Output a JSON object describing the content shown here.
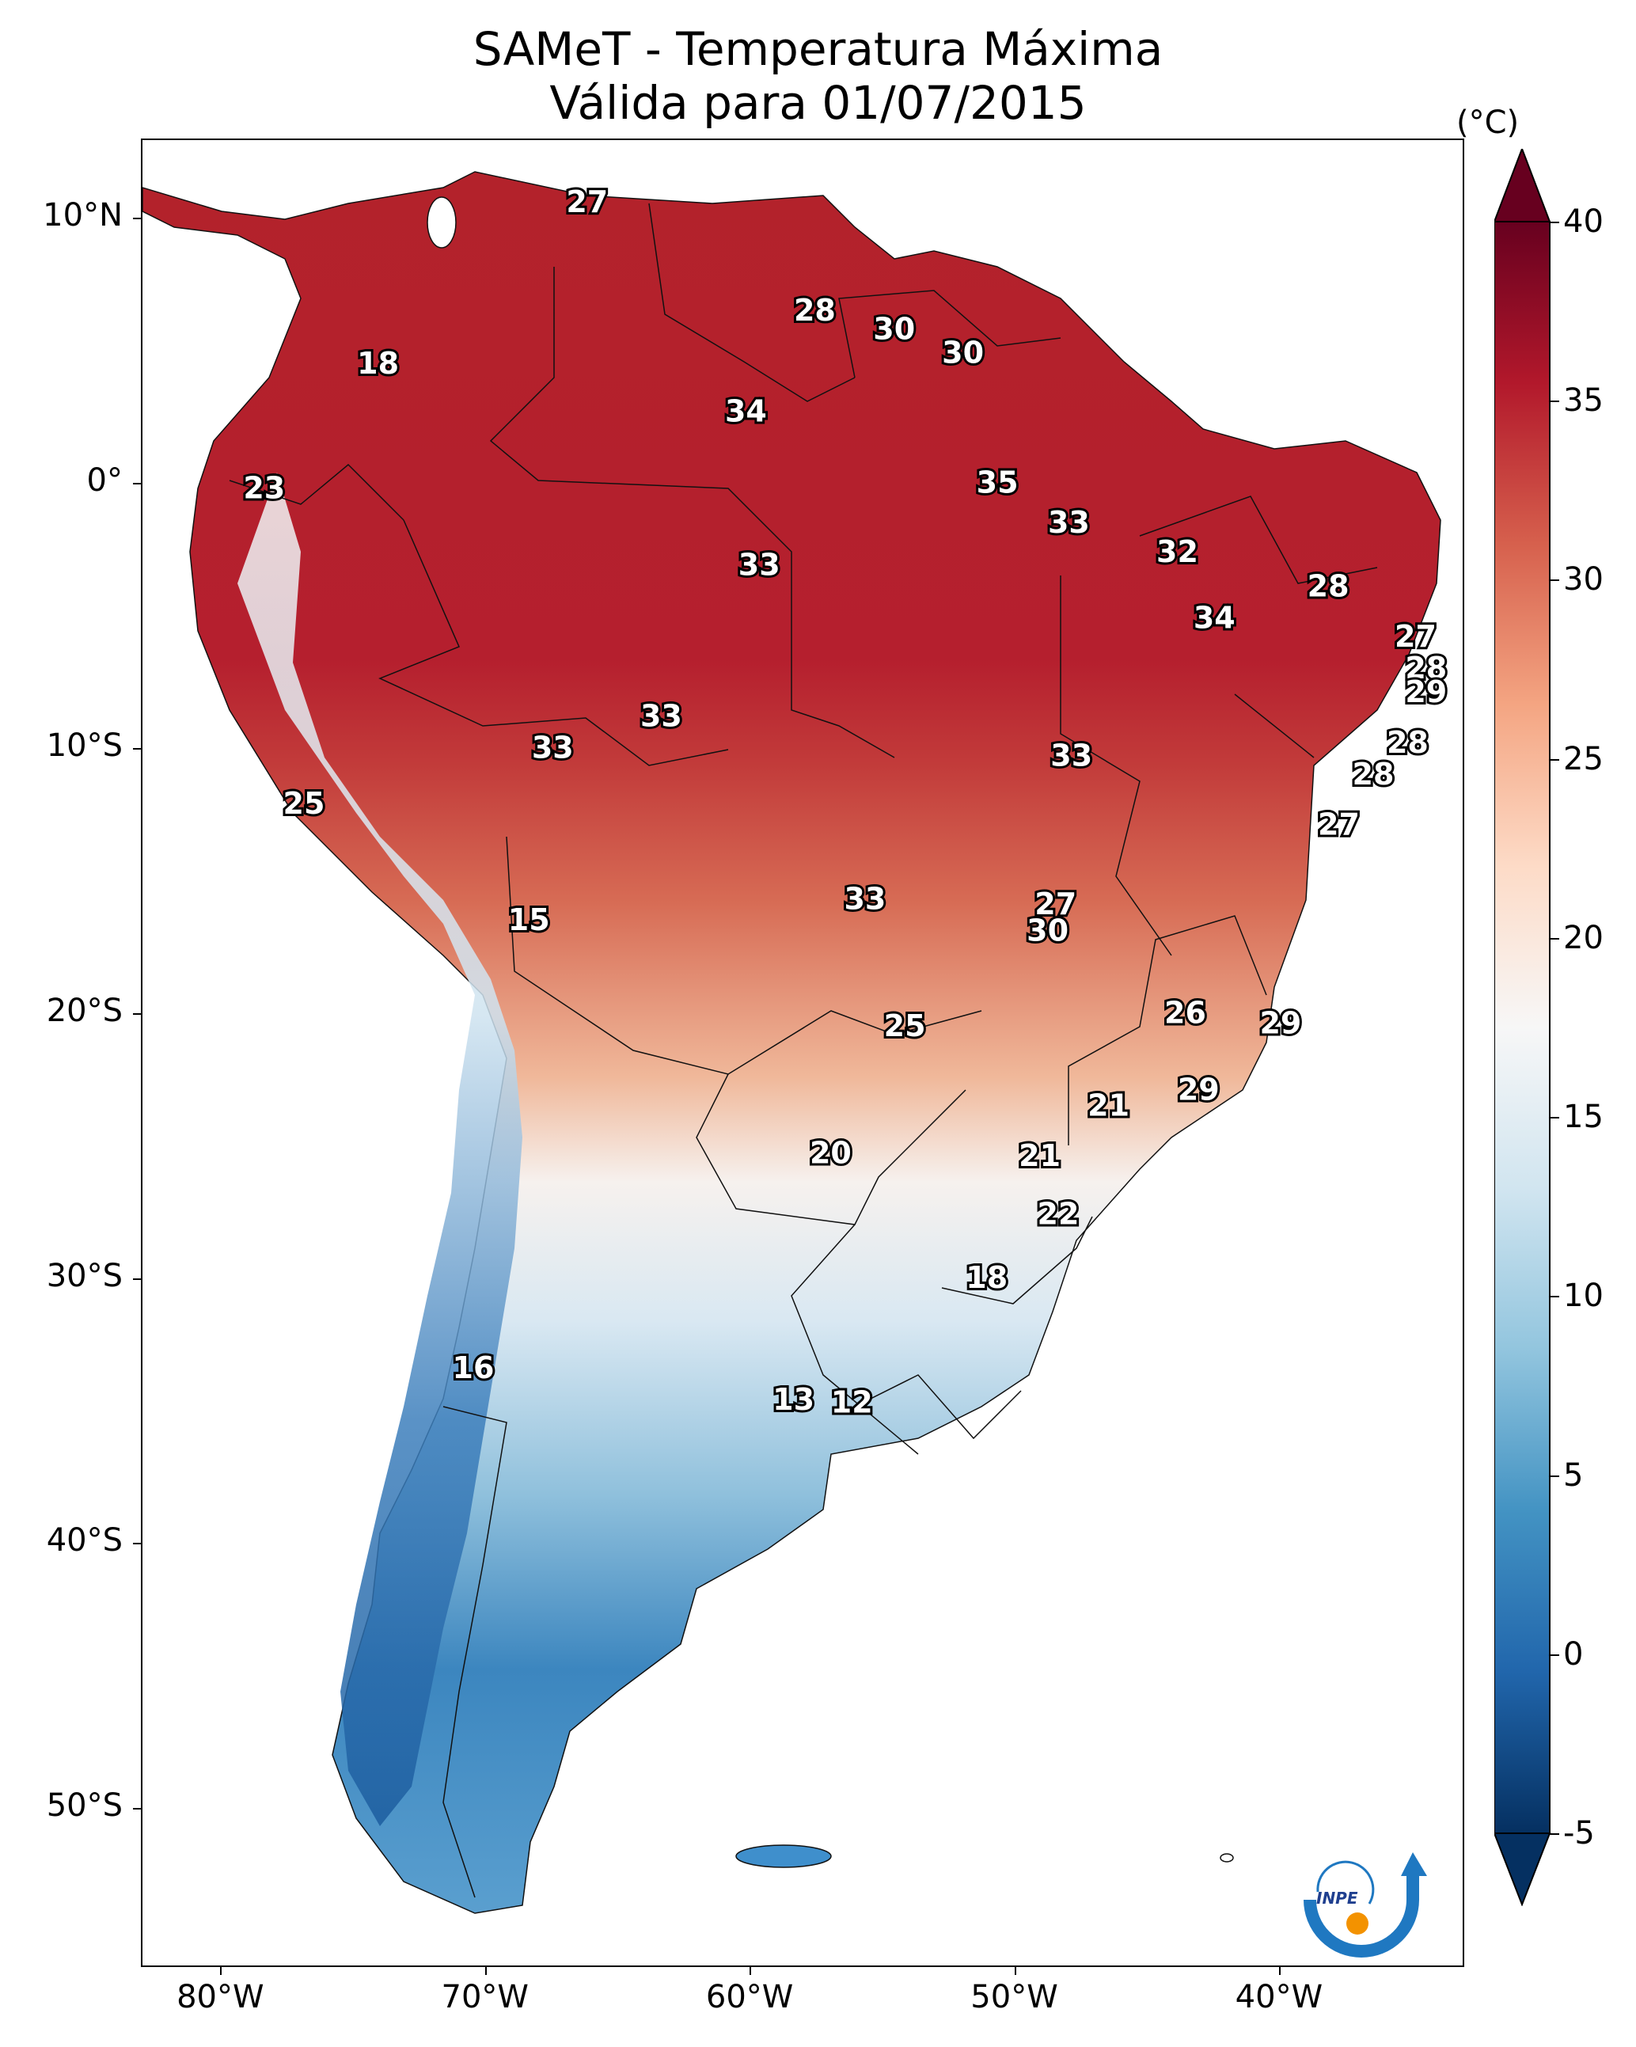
{
  "title": {
    "line1": "SAMeT - Temperatura Máxima",
    "line2": "Válida para 01/07/2015"
  },
  "map": {
    "lon_range": [
      -83,
      -33
    ],
    "lat_range": [
      -56,
      13
    ],
    "lat_ticks": [
      {
        "value": 10,
        "label": "10°N"
      },
      {
        "value": 0,
        "label": "0°"
      },
      {
        "value": -10,
        "label": "10°S"
      },
      {
        "value": -20,
        "label": "20°S"
      },
      {
        "value": -30,
        "label": "30°S"
      },
      {
        "value": -40,
        "label": "40°S"
      },
      {
        "value": -50,
        "label": "50°S"
      }
    ],
    "lon_ticks": [
      {
        "value": -80,
        "label": "80°W"
      },
      {
        "value": -70,
        "label": "70°W"
      },
      {
        "value": -60,
        "label": "60°W"
      },
      {
        "value": -50,
        "label": "50°W"
      },
      {
        "value": -40,
        "label": "40°W"
      }
    ],
    "value_labels": [
      {
        "text": "27",
        "lon": -66.2,
        "lat": 10.6
      },
      {
        "text": "28",
        "lon": -57.6,
        "lat": 6.5
      },
      {
        "text": "30",
        "lon": -54.6,
        "lat": 5.8
      },
      {
        "text": "30",
        "lon": -52.0,
        "lat": 4.9
      },
      {
        "text": "18",
        "lon": -74.1,
        "lat": 4.5
      },
      {
        "text": "34",
        "lon": -60.2,
        "lat": 2.7
      },
      {
        "text": "23",
        "lon": -78.4,
        "lat": -0.2
      },
      {
        "text": "35",
        "lon": -50.7,
        "lat": 0.0
      },
      {
        "text": "33",
        "lon": -48.0,
        "lat": -1.5
      },
      {
        "text": "32",
        "lon": -43.9,
        "lat": -2.6
      },
      {
        "text": "33",
        "lon": -59.7,
        "lat": -3.1
      },
      {
        "text": "28",
        "lon": -38.2,
        "lat": -3.9
      },
      {
        "text": "34",
        "lon": -42.5,
        "lat": -5.1
      },
      {
        "text": "27",
        "lon": -34.9,
        "lat": -5.8
      },
      {
        "text": "28",
        "lon": -34.5,
        "lat": -7.0
      },
      {
        "text": "29",
        "lon": -34.5,
        "lat": -7.9
      },
      {
        "text": "33",
        "lon": -63.4,
        "lat": -8.8
      },
      {
        "text": "33",
        "lon": -67.5,
        "lat": -10.0
      },
      {
        "text": "33",
        "lon": -47.9,
        "lat": -10.3
      },
      {
        "text": "28",
        "lon": -35.2,
        "lat": -9.8
      },
      {
        "text": "28",
        "lon": -36.5,
        "lat": -11.0
      },
      {
        "text": "25",
        "lon": -76.9,
        "lat": -12.1
      },
      {
        "text": "27",
        "lon": -37.8,
        "lat": -12.9
      },
      {
        "text": "27",
        "lon": -48.5,
        "lat": -15.9
      },
      {
        "text": "33",
        "lon": -55.7,
        "lat": -15.7
      },
      {
        "text": "15",
        "lon": -68.4,
        "lat": -16.5
      },
      {
        "text": "30",
        "lon": -48.8,
        "lat": -16.9
      },
      {
        "text": "26",
        "lon": -43.6,
        "lat": -20.0
      },
      {
        "text": "29",
        "lon": -40.0,
        "lat": -20.4
      },
      {
        "text": "25",
        "lon": -54.2,
        "lat": -20.5
      },
      {
        "text": "29",
        "lon": -43.1,
        "lat": -22.9
      },
      {
        "text": "21",
        "lon": -46.5,
        "lat": -23.5
      },
      {
        "text": "20",
        "lon": -57.0,
        "lat": -25.3
      },
      {
        "text": "21",
        "lon": -49.1,
        "lat": -25.4
      },
      {
        "text": "22",
        "lon": -48.4,
        "lat": -27.6
      },
      {
        "text": "18",
        "lon": -51.1,
        "lat": -30.0
      },
      {
        "text": "16",
        "lon": -70.5,
        "lat": -33.4
      },
      {
        "text": "13",
        "lon": -58.4,
        "lat": -34.6
      },
      {
        "text": "12",
        "lon": -56.2,
        "lat": -34.7
      }
    ]
  },
  "colorbar": {
    "unit": "(°C)",
    "min": -5,
    "max": 40,
    "ticks": [
      {
        "value": 40,
        "label": "40"
      },
      {
        "value": 35,
        "label": "35"
      },
      {
        "value": 30,
        "label": "30"
      },
      {
        "value": 25,
        "label": "25"
      },
      {
        "value": 20,
        "label": "20"
      },
      {
        "value": 15,
        "label": "15"
      },
      {
        "value": 10,
        "label": "10"
      },
      {
        "value": 5,
        "label": "5"
      },
      {
        "value": 0,
        "label": "0"
      },
      {
        "value": -5,
        "label": "-5"
      }
    ],
    "colors": [
      "#053061",
      "#2166ac",
      "#4393c3",
      "#92c5de",
      "#d1e5f0",
      "#f7f7f7",
      "#fddbc7",
      "#f4a582",
      "#d6604d",
      "#b2182b",
      "#67001f"
    ]
  },
  "logo": {
    "text": "INPE",
    "colors": {
      "arc": "#1f78c1",
      "dot": "#f39200"
    }
  }
}
